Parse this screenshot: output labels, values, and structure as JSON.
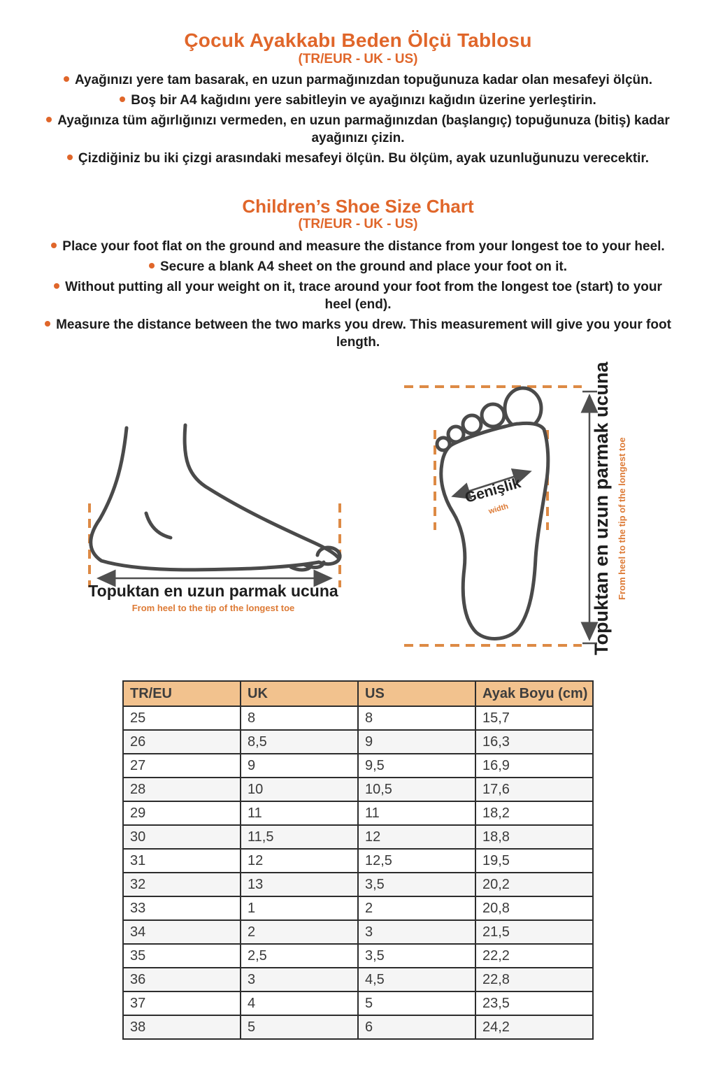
{
  "tr_section": {
    "title": "Çocuk Ayakkabı Beden Ölçü Tablosu",
    "subtitle": "(TR/EUR - UK - US)",
    "bullets": [
      "Ayağınızı yere tam basarak, en uzun parmağınızdan topuğunuza kadar olan mesafeyi ölçün.",
      "Boş bir A4 kağıdını yere sabitleyin ve ayağınızı kağıdın üzerine yerleştirin.",
      "Ayağınıza tüm ağırlığınızı vermeden, en uzun parmağınızdan (başlangıç) topuğunuza (bitiş) kadar ayağınızı çizin.",
      "Çizdiğiniz bu iki çizgi arasındaki mesafeyi ölçün. Bu ölçüm, ayak uzunluğunuzu verecektir."
    ]
  },
  "en_section": {
    "title": "Children’s Shoe Size Chart",
    "subtitle": "(TR/EUR - UK - US)",
    "bullets": [
      "Place your foot flat on the ground and measure the distance from your longest toe to your heel.",
      "Secure a blank A4 sheet on the ground and place your foot on it.",
      "Without putting all your weight on it, trace around your foot from the longest toe (start) to your heel (end).",
      "Measure the distance between the two marks you drew. This measurement will give you your foot length."
    ]
  },
  "side_diagram": {
    "label_tr": "Topuktan en uzun parmak ucuna",
    "label_en": "From heel to the tip of the longest toe"
  },
  "footprint_diagram": {
    "width_label_tr": "Genişlik",
    "width_label_en": "width",
    "length_label_tr": "Topuktan en uzun parmak ucuna",
    "length_label_en": "From heel to the tip of the longest toe"
  },
  "size_table": {
    "headers": [
      "TR/EU",
      "UK",
      "US",
      "Ayak Boyu (cm)"
    ],
    "rows": [
      [
        "25",
        "8",
        "8",
        "15,7"
      ],
      [
        "26",
        "8,5",
        "9",
        "16,3"
      ],
      [
        "27",
        "9",
        "9,5",
        "16,9"
      ],
      [
        "28",
        "10",
        "10,5",
        "17,6"
      ],
      [
        "29",
        "11",
        "11",
        "18,2"
      ],
      [
        "30",
        "11,5",
        "12",
        "18,8"
      ],
      [
        "31",
        "12",
        "12,5",
        "19,5"
      ],
      [
        "32",
        "13",
        "3,5",
        "20,2"
      ],
      [
        "33",
        "1",
        "2",
        "20,8"
      ],
      [
        "34",
        "2",
        "3",
        "21,5"
      ],
      [
        "35",
        "2,5",
        "3,5",
        "22,2"
      ],
      [
        "36",
        "3",
        "4,5",
        "22,8"
      ],
      [
        "37",
        "4",
        "5",
        "23,5"
      ],
      [
        "38",
        "5",
        "6",
        "24,2"
      ]
    ]
  },
  "colors": {
    "accent_orange": "#e0662a",
    "dash_orange": "#dd8a45",
    "line_art_gray": "#4a4a4a",
    "table_header_bg": "#f2c28e",
    "table_border": "#2d2d2d"
  }
}
